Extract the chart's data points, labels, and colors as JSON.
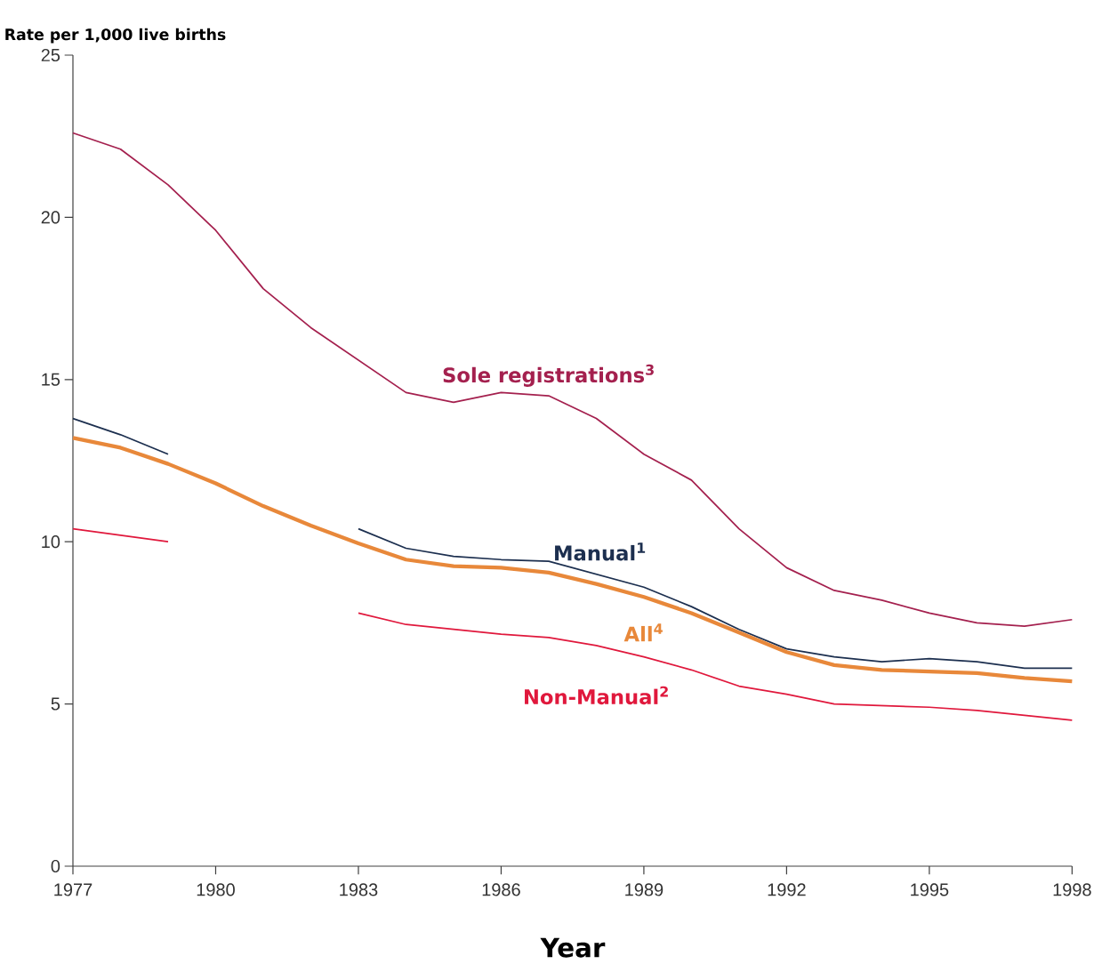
{
  "chart_data": {
    "type": "line",
    "ylabel": "Rate per 1,000 live births",
    "xlabel": "Year",
    "x": [
      1977,
      1978,
      1979,
      1980,
      1981,
      1982,
      1983,
      1984,
      1985,
      1986,
      1987,
      1988,
      1989,
      1990,
      1991,
      1992,
      1993,
      1994,
      1995,
      1996,
      1997,
      1998
    ],
    "series": [
      {
        "name": "Sole registrations$^{3}$",
        "color": "#a4204e",
        "values": [
          22.6,
          22.1,
          21.0,
          19.6,
          17.8,
          16.6,
          15.6,
          14.6,
          14.3,
          14.6,
          14.5,
          13.8,
          12.7,
          11.9,
          10.4,
          9.2,
          8.5,
          8.2,
          7.8,
          7.5,
          7.4,
          7.6
        ]
      },
      {
        "name": "Manual$^{1}$",
        "color": "#1c2f4f",
        "values": [
          13.8,
          13.3,
          12.7,
          null,
          null,
          null,
          10.4,
          9.8,
          9.55,
          9.45,
          9.4,
          9.0,
          8.6,
          8.0,
          7.3,
          6.7,
          6.45,
          6.3,
          6.4,
          6.3,
          6.1,
          6.1
        ]
      },
      {
        "name": "All$^{4}$",
        "color": "#e8883a",
        "values": [
          13.2,
          12.9,
          12.4,
          11.8,
          11.1,
          10.5,
          9.95,
          9.45,
          9.25,
          9.2,
          9.05,
          8.7,
          8.3,
          7.8,
          7.2,
          6.6,
          6.2,
          6.05,
          6.0,
          5.95,
          5.8,
          5.7
        ]
      },
      {
        "name": "Non-Manual$^{2}$",
        "color": "#e0183c",
        "values": [
          10.4,
          10.2,
          10.0,
          null,
          null,
          null,
          7.8,
          7.45,
          7.3,
          7.15,
          7.05,
          6.8,
          6.45,
          6.05,
          5.55,
          5.3,
          5.0,
          4.95,
          4.9,
          4.8,
          4.65,
          4.5
        ]
      }
    ],
    "xlim": [
      1977,
      1998
    ],
    "xticks": [
      1977,
      1980,
      1983,
      1986,
      1989,
      1992,
      1995,
      1998
    ],
    "ylim": [
      0,
      25
    ],
    "yticks": [
      0,
      5,
      10,
      15,
      20,
      25
    ],
    "grid": false,
    "marker": "none",
    "line_style": "solid"
  }
}
